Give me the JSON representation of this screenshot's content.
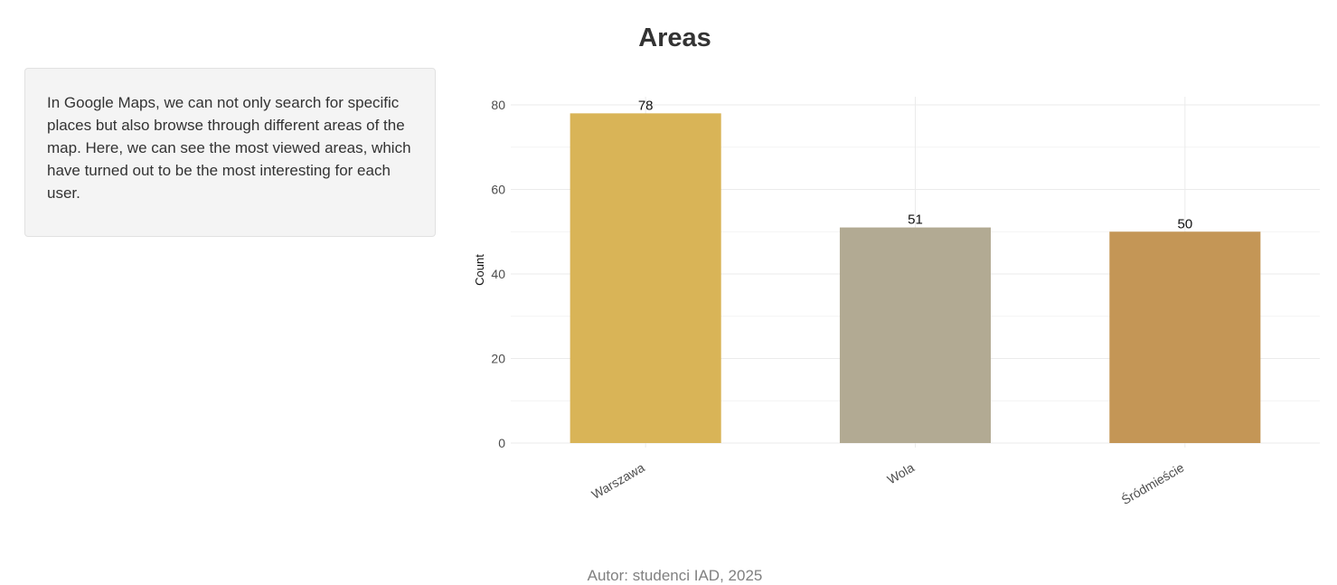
{
  "page": {
    "title": "Areas",
    "description": "In Google Maps, we can not only search for specific places but also browse through different areas of the map. Here, we can see the most viewed areas, which have turned out to be the most interesting for each user.",
    "footer": "Autor: studenci IAD, 2025"
  },
  "chart_data": {
    "type": "bar",
    "title": "",
    "xlabel": "",
    "ylabel": "Count",
    "categories": [
      "Warszawa",
      "Wola",
      "Śródmieście"
    ],
    "values": [
      78,
      51,
      50
    ],
    "colors": [
      "#d9b457",
      "#b2aa93",
      "#c49656"
    ],
    "ylim": [
      0,
      80
    ],
    "y_ticks": [
      0,
      20,
      40,
      60,
      80
    ],
    "grid": true,
    "data_labels": true,
    "x_tick_rotation": "angled",
    "legend": "none"
  }
}
